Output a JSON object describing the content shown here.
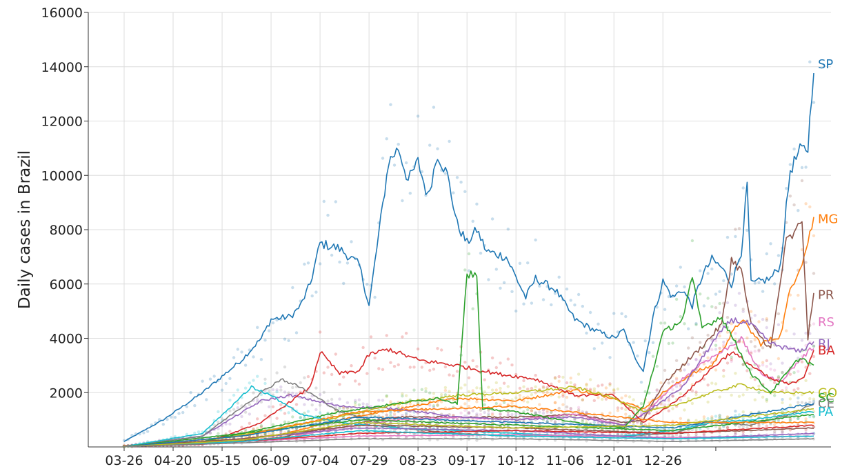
{
  "chart_data": {
    "type": "line",
    "title": "",
    "ylabel": "Daily cases in Brazil",
    "xlabel": "",
    "grid": true,
    "legend": "inline labels at right end of lines",
    "x_ticks": [
      "03-26",
      "04-20",
      "05-15",
      "06-09",
      "07-04",
      "07-29",
      "08-23",
      "09-17",
      "10-12",
      "11-06",
      "12-01",
      "12-26"
    ],
    "y_ticks": [
      2000,
      4000,
      6000,
      8000,
      10000,
      12000,
      14000,
      16000
    ],
    "x_range": [
      "03-26",
      "01-24"
    ],
    "ylim": [
      0,
      16000
    ],
    "series": [
      {
        "name": "SP",
        "color": "#1f77b4",
        "keypoints": [
          [
            0,
            200
          ],
          [
            10,
            600
          ],
          [
            20,
            1000
          ],
          [
            30,
            1500
          ],
          [
            40,
            2000
          ],
          [
            50,
            2600
          ],
          [
            60,
            3200
          ],
          [
            70,
            4000
          ],
          [
            75,
            4700
          ],
          [
            85,
            4800
          ],
          [
            90,
            5200
          ],
          [
            95,
            6000
          ],
          [
            100,
            7500
          ],
          [
            110,
            7300
          ],
          [
            120,
            6700
          ],
          [
            125,
            5200
          ],
          [
            135,
            10500
          ],
          [
            140,
            11000
          ],
          [
            145,
            9800
          ],
          [
            150,
            10500
          ],
          [
            155,
            9200
          ],
          [
            160,
            10800
          ],
          [
            165,
            10000
          ],
          [
            170,
            8200
          ],
          [
            175,
            7500
          ],
          [
            180,
            8000
          ],
          [
            185,
            7200
          ],
          [
            195,
            7000
          ],
          [
            205,
            5500
          ],
          [
            210,
            6200
          ],
          [
            220,
            5800
          ],
          [
            230,
            4700
          ],
          [
            240,
            4300
          ],
          [
            250,
            4000
          ],
          [
            255,
            4300
          ],
          [
            260,
            3400
          ],
          [
            265,
            2800
          ],
          [
            270,
            4800
          ],
          [
            275,
            6100
          ],
          [
            280,
            5500
          ],
          [
            285,
            5800
          ],
          [
            290,
            5200
          ],
          [
            295,
            6300
          ],
          [
            300,
            6900
          ],
          [
            305,
            6600
          ],
          [
            310,
            6000
          ],
          [
            315,
            7200
          ],
          [
            318,
            9600
          ],
          [
            320,
            6000
          ],
          [
            325,
            6100
          ],
          [
            330,
            6200
          ],
          [
            335,
            6700
          ],
          [
            340,
            10200
          ],
          [
            345,
            10900
          ],
          [
            349,
            11000
          ],
          [
            352,
            14100
          ]
        ]
      },
      {
        "name": "MG",
        "color": "#ff7f0e",
        "keypoints": [
          [
            0,
            50
          ],
          [
            40,
            150
          ],
          [
            80,
            450
          ],
          [
            110,
            1000
          ],
          [
            140,
            1400
          ],
          [
            170,
            1800
          ],
          [
            200,
            1700
          ],
          [
            230,
            2100
          ],
          [
            250,
            1800
          ],
          [
            265,
            1400
          ],
          [
            275,
            2000
          ],
          [
            290,
            2700
          ],
          [
            300,
            3000
          ],
          [
            315,
            4700
          ],
          [
            325,
            3800
          ],
          [
            335,
            4100
          ],
          [
            340,
            5800
          ],
          [
            347,
            7000
          ],
          [
            352,
            8400
          ]
        ]
      },
      {
        "name": "PR",
        "color": "#8c564b",
        "keypoints": [
          [
            0,
            30
          ],
          [
            40,
            100
          ],
          [
            80,
            350
          ],
          [
            110,
            800
          ],
          [
            140,
            1100
          ],
          [
            170,
            1100
          ],
          [
            200,
            1100
          ],
          [
            230,
            1200
          ],
          [
            255,
            900
          ],
          [
            265,
            1000
          ],
          [
            275,
            2300
          ],
          [
            285,
            3000
          ],
          [
            295,
            3700
          ],
          [
            305,
            4500
          ],
          [
            310,
            6900
          ],
          [
            315,
            6500
          ],
          [
            320,
            4500
          ],
          [
            330,
            3600
          ],
          [
            338,
            7600
          ],
          [
            342,
            7800
          ],
          [
            346,
            8400
          ],
          [
            349,
            4000
          ],
          [
            352,
            5600
          ]
        ]
      },
      {
        "name": "RS",
        "color": "#e377c2",
        "keypoints": [
          [
            0,
            30
          ],
          [
            40,
            100
          ],
          [
            80,
            300
          ],
          [
            110,
            700
          ],
          [
            140,
            1000
          ],
          [
            170,
            1100
          ],
          [
            200,
            1000
          ],
          [
            230,
            1200
          ],
          [
            255,
            800
          ],
          [
            265,
            1200
          ],
          [
            280,
            2200
          ],
          [
            295,
            3100
          ],
          [
            305,
            3500
          ],
          [
            315,
            4000
          ],
          [
            325,
            2700
          ],
          [
            335,
            2400
          ],
          [
            345,
            3200
          ],
          [
            352,
            3700
          ]
        ]
      },
      {
        "name": "RJ",
        "color": "#9467bd",
        "keypoints": [
          [
            0,
            30
          ],
          [
            40,
            400
          ],
          [
            70,
            1700
          ],
          [
            85,
            1900
          ],
          [
            110,
            1500
          ],
          [
            140,
            1400
          ],
          [
            170,
            1100
          ],
          [
            200,
            1000
          ],
          [
            230,
            1100
          ],
          [
            255,
            800
          ],
          [
            265,
            1200
          ],
          [
            285,
            2200
          ],
          [
            300,
            3800
          ],
          [
            310,
            4700
          ],
          [
            320,
            4500
          ],
          [
            330,
            3800
          ],
          [
            345,
            3500
          ],
          [
            352,
            3900
          ]
        ]
      },
      {
        "name": "BA",
        "color": "#d62728",
        "keypoints": [
          [
            0,
            20
          ],
          [
            40,
            100
          ],
          [
            70,
            900
          ],
          [
            95,
            2200
          ],
          [
            100,
            3500
          ],
          [
            110,
            2700
          ],
          [
            120,
            2800
          ],
          [
            125,
            3400
          ],
          [
            135,
            3600
          ],
          [
            150,
            3200
          ],
          [
            170,
            3000
          ],
          [
            190,
            2700
          ],
          [
            210,
            2500
          ],
          [
            230,
            1900
          ],
          [
            250,
            1900
          ],
          [
            265,
            900
          ],
          [
            280,
            1600
          ],
          [
            290,
            2200
          ],
          [
            300,
            2900
          ],
          [
            310,
            3500
          ],
          [
            320,
            3000
          ],
          [
            330,
            2500
          ],
          [
            340,
            2300
          ],
          [
            347,
            2600
          ],
          [
            352,
            3600
          ]
        ]
      },
      {
        "name": "GO",
        "color": "#bcbd22",
        "keypoints": [
          [
            0,
            20
          ],
          [
            40,
            200
          ],
          [
            80,
            700
          ],
          [
            110,
            1100
          ],
          [
            140,
            1600
          ],
          [
            170,
            1900
          ],
          [
            200,
            2000
          ],
          [
            230,
            2200
          ],
          [
            250,
            1800
          ],
          [
            265,
            1300
          ],
          [
            280,
            1500
          ],
          [
            300,
            2000
          ],
          [
            315,
            2300
          ],
          [
            330,
            2000
          ],
          [
            345,
            2000
          ],
          [
            352,
            2000
          ]
        ]
      },
      {
        "name": "SC",
        "color": "#2ca02c",
        "keypoints": [
          [
            0,
            20
          ],
          [
            40,
            200
          ],
          [
            80,
            800
          ],
          [
            110,
            1300
          ],
          [
            140,
            1600
          ],
          [
            160,
            1800
          ],
          [
            170,
            1600
          ],
          [
            175,
            6400
          ],
          [
            180,
            6300
          ],
          [
            183,
            1400
          ],
          [
            200,
            1300
          ],
          [
            230,
            900
          ],
          [
            255,
            700
          ],
          [
            265,
            1500
          ],
          [
            275,
            4200
          ],
          [
            285,
            4700
          ],
          [
            290,
            6200
          ],
          [
            295,
            4400
          ],
          [
            305,
            4800
          ],
          [
            320,
            2700
          ],
          [
            330,
            2000
          ],
          [
            345,
            3300
          ],
          [
            352,
            3000
          ]
        ]
      },
      {
        "name": "CE",
        "color": "#7f7f7f",
        "keypoints": [
          [
            0,
            20
          ],
          [
            40,
            400
          ],
          [
            70,
            2000
          ],
          [
            80,
            2500
          ],
          [
            90,
            2200
          ],
          [
            110,
            1300
          ],
          [
            140,
            700
          ],
          [
            170,
            500
          ],
          [
            200,
            400
          ],
          [
            230,
            400
          ],
          [
            255,
            400
          ],
          [
            280,
            500
          ],
          [
            300,
            900
          ],
          [
            320,
            800
          ],
          [
            340,
            1200
          ],
          [
            352,
            1600
          ]
        ]
      },
      {
        "name": "PA",
        "color": "#17becf",
        "keypoints": [
          [
            0,
            10
          ],
          [
            40,
            500
          ],
          [
            65,
            2200
          ],
          [
            75,
            1900
          ],
          [
            90,
            1200
          ],
          [
            110,
            900
          ],
          [
            140,
            700
          ],
          [
            170,
            600
          ],
          [
            200,
            500
          ],
          [
            230,
            400
          ],
          [
            255,
            400
          ],
          [
            280,
            600
          ],
          [
            300,
            900
          ],
          [
            320,
            1000
          ],
          [
            340,
            1200
          ],
          [
            352,
            1300
          ]
        ]
      },
      {
        "name": "",
        "color": "#e377c2",
        "keypoints": [
          [
            0,
            10
          ],
          [
            60,
            200
          ],
          [
            120,
            400
          ],
          [
            200,
            450
          ],
          [
            280,
            350
          ],
          [
            352,
            400
          ]
        ]
      },
      {
        "name": "",
        "color": "#9467bd",
        "keypoints": [
          [
            0,
            10
          ],
          [
            60,
            300
          ],
          [
            120,
            700
          ],
          [
            200,
            600
          ],
          [
            280,
            300
          ],
          [
            352,
            500
          ]
        ]
      },
      {
        "name": "",
        "color": "#2ca02c",
        "keypoints": [
          [
            0,
            10
          ],
          [
            60,
            500
          ],
          [
            120,
            1000
          ],
          [
            200,
            800
          ],
          [
            280,
            600
          ],
          [
            352,
            1200
          ]
        ]
      },
      {
        "name": "",
        "color": "#ff7f0e",
        "keypoints": [
          [
            0,
            10
          ],
          [
            60,
            400
          ],
          [
            120,
            1300
          ],
          [
            200,
            1500
          ],
          [
            280,
            900
          ],
          [
            352,
            900
          ]
        ]
      },
      {
        "name": "",
        "color": "#8c564b",
        "keypoints": [
          [
            0,
            10
          ],
          [
            60,
            300
          ],
          [
            120,
            800
          ],
          [
            200,
            700
          ],
          [
            280,
            500
          ],
          [
            352,
            700
          ]
        ]
      },
      {
        "name": "",
        "color": "#1f77b4",
        "keypoints": [
          [
            0,
            10
          ],
          [
            60,
            400
          ],
          [
            120,
            1100
          ],
          [
            200,
            900
          ],
          [
            280,
            700
          ],
          [
            352,
            1600
          ]
        ]
      },
      {
        "name": "",
        "color": "#d62728",
        "keypoints": [
          [
            0,
            10
          ],
          [
            60,
            200
          ],
          [
            120,
            500
          ],
          [
            200,
            600
          ],
          [
            280,
            500
          ],
          [
            352,
            800
          ]
        ]
      },
      {
        "name": "",
        "color": "#17becf",
        "keypoints": [
          [
            0,
            10
          ],
          [
            60,
            200
          ],
          [
            120,
            600
          ],
          [
            200,
            400
          ],
          [
            280,
            300
          ],
          [
            352,
            400
          ]
        ]
      },
      {
        "name": "",
        "color": "#bcbd22",
        "keypoints": [
          [
            0,
            10
          ],
          [
            60,
            250
          ],
          [
            120,
            900
          ],
          [
            200,
            700
          ],
          [
            280,
            800
          ],
          [
            352,
            1400
          ]
        ]
      },
      {
        "name": "",
        "color": "#7f7f7f",
        "keypoints": [
          [
            0,
            10
          ],
          [
            60,
            150
          ],
          [
            120,
            300
          ],
          [
            200,
            300
          ],
          [
            280,
            200
          ],
          [
            352,
            300
          ]
        ]
      }
    ]
  }
}
